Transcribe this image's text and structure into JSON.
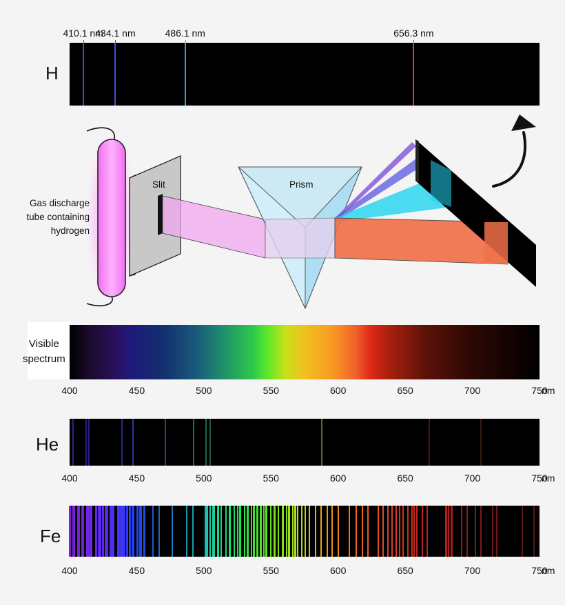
{
  "hydrogen": {
    "symbol": "H",
    "lines": [
      {
        "label": "410.1 nm",
        "nm": 410.1,
        "color": "#5a3cc8"
      },
      {
        "label": "434.1 nm",
        "nm": 434.1,
        "color": "#4a4adc"
      },
      {
        "label": "486.1 nm",
        "nm": 486.1,
        "color": "#2aa8e0"
      },
      {
        "label": "656.3 nm",
        "nm": 656.3,
        "color": "#e63a20"
      }
    ]
  },
  "apparatus": {
    "tube_label": [
      "Gas discharge",
      "tube containing",
      "hydrogen"
    ],
    "slit_label": "Slit",
    "prism_label": "Prism"
  },
  "visible": {
    "label_lines": [
      "Visible",
      "spectrum"
    ]
  },
  "axis": {
    "ticks": [
      "400",
      "450",
      "500",
      "550",
      "600",
      "650",
      "700",
      "750"
    ],
    "unit": "nm",
    "min_nm": 400,
    "max_nm": 750
  },
  "helium": {
    "symbol": "He",
    "lines": [
      {
        "nm": 402.6,
        "color": "#3a1c8a"
      },
      {
        "nm": 412.1,
        "color": "#2a2080"
      },
      {
        "nm": 414.4,
        "color": "#2a2080"
      },
      {
        "nm": 438.8,
        "color": "#23308a"
      },
      {
        "nm": 447.1,
        "color": "#2a3aa0"
      },
      {
        "nm": 471.3,
        "color": "#1a4a7a"
      },
      {
        "nm": 492.2,
        "color": "#1a6a6a"
      },
      {
        "nm": 501.6,
        "color": "#1a6a4a"
      },
      {
        "nm": 504.8,
        "color": "#1a5a3a"
      },
      {
        "nm": 587.6,
        "color": "#6a6a10"
      },
      {
        "nm": 667.8,
        "color": "#4a1a10"
      },
      {
        "nm": 706.5,
        "color": "#3a1a10"
      }
    ]
  },
  "iron": {
    "symbol": "Fe",
    "lines": [
      {
        "nm": 400.5,
        "w": 3,
        "color": "#7a20d0"
      },
      {
        "nm": 403.0,
        "w": 4,
        "color": "#7a22d8"
      },
      {
        "nm": 406.4,
        "w": 3,
        "color": "#7822d8"
      },
      {
        "nm": 407.2,
        "w": 2,
        "color": "#7622da"
      },
      {
        "nm": 409.5,
        "w": 4,
        "color": "#7424dc"
      },
      {
        "nm": 413.2,
        "w": 3,
        "color": "#7024e0"
      },
      {
        "nm": 414.4,
        "w": 5,
        "color": "#6c26e2"
      },
      {
        "nm": 416.5,
        "w": 2,
        "color": "#6a28e4"
      },
      {
        "nm": 419.9,
        "w": 3,
        "color": "#6628e6"
      },
      {
        "nm": 421.6,
        "w": 3,
        "color": "#6228e8"
      },
      {
        "nm": 422.7,
        "w": 4,
        "color": "#5e2aea"
      },
      {
        "nm": 425.1,
        "w": 3,
        "color": "#5a2aec"
      },
      {
        "nm": 427.2,
        "w": 5,
        "color": "#562cee"
      },
      {
        "nm": 430.8,
        "w": 5,
        "color": "#502ef0"
      },
      {
        "nm": 432.6,
        "w": 3,
        "color": "#4a30f2"
      },
      {
        "nm": 436.0,
        "w": 3,
        "color": "#4432f2"
      },
      {
        "nm": 438.4,
        "w": 6,
        "color": "#3e34f2"
      },
      {
        "nm": 440.5,
        "w": 4,
        "color": "#3836f2"
      },
      {
        "nm": 442.7,
        "w": 3,
        "color": "#3038f0"
      },
      {
        "nm": 445.0,
        "w": 3,
        "color": "#2a3cee"
      },
      {
        "nm": 447.3,
        "w": 4,
        "color": "#2440ec"
      },
      {
        "nm": 450.8,
        "w": 3,
        "color": "#2044e8"
      },
      {
        "nm": 452.9,
        "w": 4,
        "color": "#1c48e4"
      },
      {
        "nm": 455.6,
        "w": 3,
        "color": "#1a4ce0"
      },
      {
        "nm": 461.9,
        "w": 2,
        "color": "#1a58d8"
      },
      {
        "nm": 466.8,
        "w": 2,
        "color": "#1a64d0"
      },
      {
        "nm": 476.7,
        "w": 2,
        "color": "#1a7ac4"
      },
      {
        "nm": 487.1,
        "w": 2,
        "color": "#1a92b4"
      },
      {
        "nm": 491.9,
        "w": 2,
        "color": "#1aa0ae"
      },
      {
        "nm": 501.2,
        "w": 3,
        "color": "#1ab8b0"
      },
      {
        "nm": 502.5,
        "w": 3,
        "color": "#1ac4b0"
      },
      {
        "nm": 504.9,
        "w": 2,
        "color": "#1ac8a8"
      },
      {
        "nm": 506.5,
        "w": 2,
        "color": "#1acca0"
      },
      {
        "nm": 508.0,
        "w": 2,
        "color": "#1ad098"
      },
      {
        "nm": 510.8,
        "w": 3,
        "color": "#1ad490"
      },
      {
        "nm": 512.7,
        "w": 2,
        "color": "#1ad888"
      },
      {
        "nm": 516.7,
        "w": 2,
        "color": "#1ae07a"
      },
      {
        "nm": 519.2,
        "w": 3,
        "color": "#1ae070"
      },
      {
        "nm": 522.7,
        "w": 2,
        "color": "#1ae066"
      },
      {
        "nm": 525.0,
        "w": 2,
        "color": "#1ae05a"
      },
      {
        "nm": 527.0,
        "w": 3,
        "color": "#20e050"
      },
      {
        "nm": 530.2,
        "w": 2,
        "color": "#28e048"
      },
      {
        "nm": 532.8,
        "w": 3,
        "color": "#30e040"
      },
      {
        "nm": 535.4,
        "w": 2,
        "color": "#38e03a"
      },
      {
        "nm": 537.1,
        "w": 3,
        "color": "#40e034"
      },
      {
        "nm": 539.7,
        "w": 3,
        "color": "#48e02e"
      },
      {
        "nm": 542.4,
        "w": 3,
        "color": "#52e028"
      },
      {
        "nm": 544.7,
        "w": 2,
        "color": "#5ae024"
      },
      {
        "nm": 546.5,
        "w": 3,
        "color": "#60e020"
      },
      {
        "nm": 549.8,
        "w": 2,
        "color": "#6ae01c"
      },
      {
        "nm": 552.5,
        "w": 3,
        "color": "#74e01a"
      },
      {
        "nm": 555.4,
        "w": 2,
        "color": "#7ee018"
      },
      {
        "nm": 558.6,
        "w": 3,
        "color": "#88e018"
      },
      {
        "nm": 561.5,
        "w": 2,
        "color": "#92e018"
      },
      {
        "nm": 563.6,
        "w": 3,
        "color": "#9ae018"
      },
      {
        "nm": 566.1,
        "w": 2,
        "color": "#a2e018"
      },
      {
        "nm": 568.0,
        "w": 3,
        "color": "#aae018"
      },
      {
        "nm": 569.8,
        "w": 2,
        "color": "#b0e018"
      },
      {
        "nm": 573.0,
        "w": 2,
        "color": "#b8d818"
      },
      {
        "nm": 575.5,
        "w": 2,
        "color": "#c0d018"
      },
      {
        "nm": 578.5,
        "w": 2,
        "color": "#c8c418"
      },
      {
        "nm": 583.0,
        "w": 2,
        "color": "#d4b418"
      },
      {
        "nm": 587.5,
        "w": 2,
        "color": "#dca818"
      },
      {
        "nm": 592.0,
        "w": 2,
        "color": "#e49a1a"
      },
      {
        "nm": 595.5,
        "w": 2,
        "color": "#e8901c"
      },
      {
        "nm": 600.0,
        "w": 2,
        "color": "#ec841e"
      },
      {
        "nm": 608.5,
        "w": 2,
        "color": "#ee7420"
      },
      {
        "nm": 613.5,
        "w": 2,
        "color": "#ee6c22"
      },
      {
        "nm": 618.0,
        "w": 2,
        "color": "#ee6424"
      },
      {
        "nm": 622.0,
        "w": 2,
        "color": "#ec5c24"
      },
      {
        "nm": 630.0,
        "w": 2,
        "color": "#e85024"
      },
      {
        "nm": 633.5,
        "w": 2,
        "color": "#e44a24"
      },
      {
        "nm": 637.0,
        "w": 2,
        "color": "#e04424"
      },
      {
        "nm": 640.0,
        "w": 2,
        "color": "#dc4024"
      },
      {
        "nm": 643.0,
        "w": 2,
        "color": "#d83a22"
      },
      {
        "nm": 646.0,
        "w": 2,
        "color": "#d43622"
      },
      {
        "nm": 648.5,
        "w": 2,
        "color": "#d03222"
      },
      {
        "nm": 652.0,
        "w": 2,
        "color": "#cc2e22"
      },
      {
        "nm": 655.0,
        "w": 2,
        "color": "#c82a22"
      },
      {
        "nm": 656.8,
        "w": 2,
        "color": "#c42822"
      },
      {
        "nm": 658.5,
        "w": 2,
        "color": "#c02622"
      },
      {
        "nm": 663.0,
        "w": 2,
        "color": "#ba2422"
      },
      {
        "nm": 666.5,
        "w": 2,
        "color": "#b42222"
      },
      {
        "nm": 680.5,
        "w": 3,
        "color": "#a82020"
      },
      {
        "nm": 682.5,
        "w": 2,
        "color": "#a41e20"
      },
      {
        "nm": 684.5,
        "w": 3,
        "color": "#a01c1e"
      },
      {
        "nm": 692.0,
        "w": 2,
        "color": "#941a1c"
      },
      {
        "nm": 696.0,
        "w": 2,
        "color": "#8e1a1c"
      },
      {
        "nm": 702.5,
        "w": 2,
        "color": "#861a1a"
      },
      {
        "nm": 706.5,
        "w": 2,
        "color": "#801a1a"
      },
      {
        "nm": 715.0,
        "w": 2,
        "color": "#741818"
      },
      {
        "nm": 718.0,
        "w": 2,
        "color": "#701818"
      },
      {
        "nm": 737.0,
        "w": 2,
        "color": "#621616"
      },
      {
        "nm": 746.0,
        "w": 2,
        "color": "#5a1414"
      }
    ]
  }
}
